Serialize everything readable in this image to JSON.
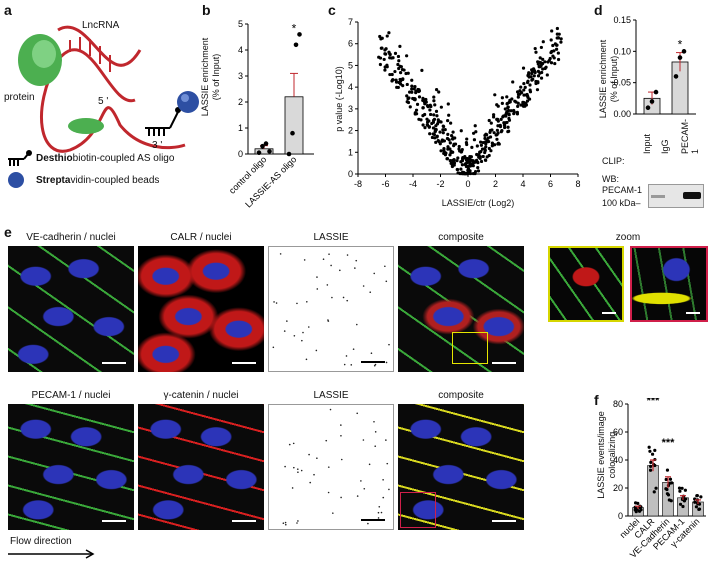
{
  "panels": {
    "a": "a",
    "b": "b",
    "c": "c",
    "d": "d",
    "e": "e",
    "f": "f"
  },
  "panel_a": {
    "lncrna": "LncRNA",
    "protein": "protein",
    "five_prime": "5 '",
    "three_prime": "3 '",
    "legend_oligo_bold": "Desthio",
    "legend_oligo_rest": "biotin-coupled AS oligo",
    "legend_beads_bold": "Strepta",
    "legend_beads_rest": "vidin-coupled beads",
    "colors": {
      "rna": "#c0272d",
      "protein": "#4caf50",
      "beads": "#2d4fa3"
    }
  },
  "chart_b": {
    "type": "bar",
    "ylabel_line1": "LASSIE enrichment",
    "ylabel_line2": "(% of Input)",
    "categories": [
      "control oligo",
      "LASSIE-AS oligo"
    ],
    "values": [
      0.2,
      2.2
    ],
    "sem": [
      0.12,
      0.9
    ],
    "points": [
      [
        0.05,
        0.3,
        0.4,
        0.1
      ],
      [
        0.0,
        0.8,
        4.2,
        4.6
      ]
    ],
    "yticks": [
      "0",
      "1",
      "2",
      "3",
      "4",
      "5"
    ],
    "ylim": [
      0,
      5
    ],
    "sig": "*"
  },
  "chart_c": {
    "type": "scatter",
    "xlabel": "LASSIE/ctr (Log2)",
    "ylabel": "p value (-Log10)",
    "xticks": [
      "-8",
      "-6",
      "-4",
      "-2",
      "0",
      "2",
      "4",
      "6",
      "8"
    ],
    "yticks": [
      "0",
      "1",
      "2",
      "3",
      "4",
      "5",
      "6",
      "7"
    ],
    "xlim": [
      -8,
      8
    ],
    "ylim": [
      0,
      7
    ]
  },
  "chart_d": {
    "type": "bar",
    "ylabel_line1": "LASSIE enrichment",
    "ylabel_line2": "(% of Input)",
    "categories": [
      "IgG",
      "PECAM-1"
    ],
    "values": [
      0.025,
      0.083
    ],
    "sem": [
      0.01,
      0.015
    ],
    "points": [
      [
        0.01,
        0.02,
        0.035
      ],
      [
        0.06,
        0.09,
        0.1
      ]
    ],
    "yticks": [
      "0.00",
      "0.05",
      "0.10",
      "0.15"
    ],
    "ylim": [
      0,
      0.15
    ],
    "sig": "*",
    "clip_label": "CLIP:",
    "input": "Input",
    "igg": "IgG",
    "pecam": "PECAM-1",
    "wb_label": "WB:",
    "wb_protein": "PECAM-1",
    "kda": "100 kDa–"
  },
  "panel_e": {
    "row1": [
      "VE-cadherin / nuclei",
      "CALR / nuclei",
      "LASSIE",
      "composite"
    ],
    "row2": [
      "PECAM-1 / nuclei",
      "γ-catenin / nuclei",
      "LASSIE",
      "composite"
    ],
    "zoom": "zoom",
    "flow": "Flow direction"
  },
  "chart_f": {
    "type": "bar",
    "ylabel_line1": "LASSIE events/image",
    "ylabel_line2": "colocalizing",
    "categories": [
      "nuclei",
      "CALR",
      "VE-Cadherin",
      "PECAM-1",
      "γ-catenin"
    ],
    "values": [
      6,
      36,
      24,
      13,
      10
    ],
    "sem": [
      1,
      4,
      4,
      1.5,
      1.5
    ],
    "yticks": [
      "0",
      "20",
      "40",
      "60",
      "80"
    ],
    "ylim": [
      0,
      80
    ],
    "sig": [
      "",
      "***",
      "***",
      "",
      ""
    ]
  }
}
